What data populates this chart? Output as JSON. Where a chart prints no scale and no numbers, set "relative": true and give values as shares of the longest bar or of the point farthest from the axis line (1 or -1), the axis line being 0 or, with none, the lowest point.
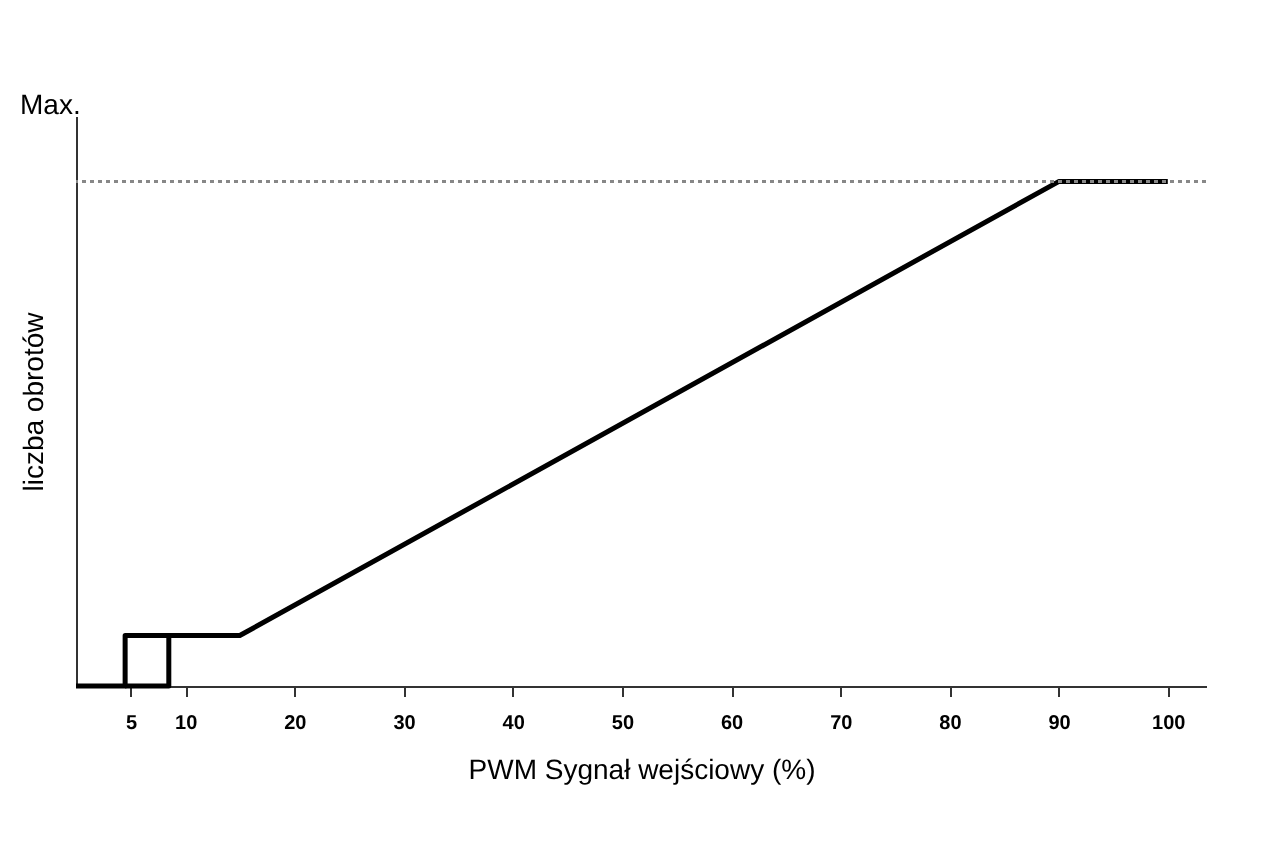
{
  "chart_data": {
    "type": "line",
    "relative": true,
    "xlabel": "PWM Sygnał wejściowy (%)",
    "ylabel": "liczba obrotów",
    "xlim": [
      0,
      103.5
    ],
    "xticks": [
      5,
      10,
      20,
      30,
      40,
      50,
      60,
      70,
      80,
      90,
      100
    ],
    "series": [
      {
        "color": "#000000",
        "x": [
          0,
          4.5,
          4.5,
          15,
          90,
          100
        ],
        "values": [
          0,
          0,
          0.1,
          0.1,
          1,
          1
        ]
      },
      {
        "color": "#000000",
        "x": [
          4.5,
          8.5,
          8.5
        ],
        "values": [
          0,
          0,
          0.1
        ]
      }
    ],
    "ref_lines": [
      {
        "axis": "y",
        "value": 1,
        "label": "Max.",
        "color": "#888888",
        "line_style": "dotted"
      }
    ],
    "grid": false,
    "legend": false,
    "marker": "none",
    "line_style": "solid"
  }
}
